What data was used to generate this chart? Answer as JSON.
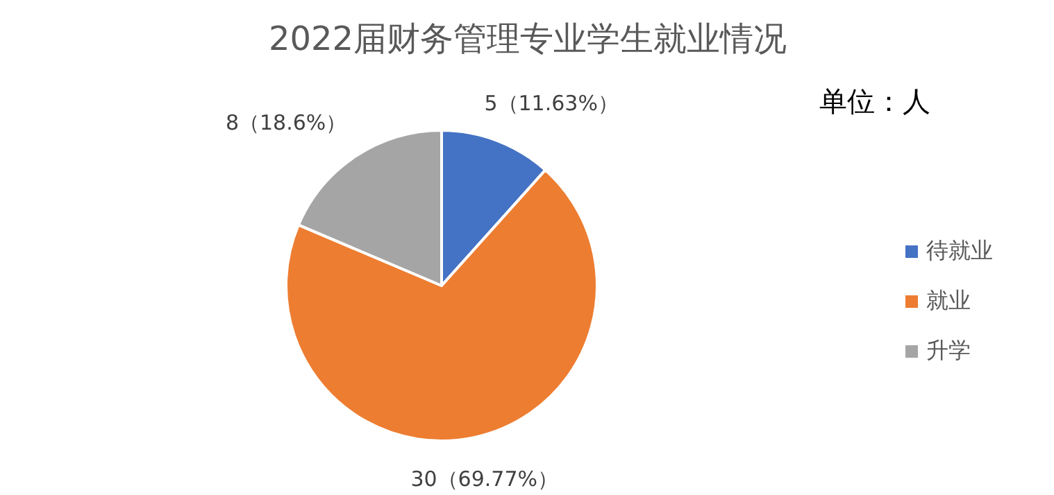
{
  "chart_data": {
    "type": "pie",
    "title": "2022届财务管理专业学生就业情况",
    "annotations": [
      "单位：人"
    ],
    "categories": [
      "待就业",
      "就业",
      "升学"
    ],
    "values": [
      5,
      30,
      8
    ],
    "colors": [
      "#4472c4",
      "#ed7d31",
      "#a5a5a5"
    ],
    "value_labels": [
      "5（11.63%）",
      "30（69.77%）",
      "8（18.6%）"
    ],
    "legend": "right"
  }
}
